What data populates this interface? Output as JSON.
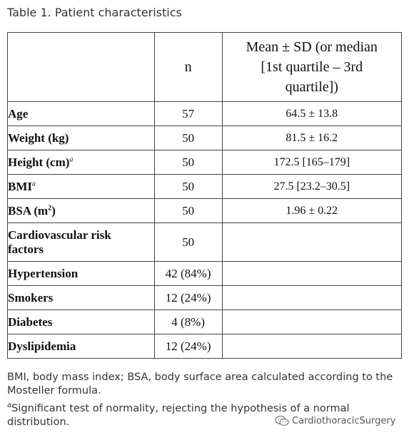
{
  "title": "Table 1. Patient characteristics",
  "headers": {
    "col1": "",
    "n": "n",
    "stat_line1": "Mean ± SD (or median",
    "stat_line2": "[1st quartile – 3rd",
    "stat_line3": "quartile])"
  },
  "rows": [
    {
      "label": "Age",
      "sup": "",
      "n": "57",
      "value": "64.5 ± 13.8"
    },
    {
      "label": "Weight (kg)",
      "sup": "",
      "n": "50",
      "value": "81.5 ± 16.2"
    },
    {
      "label": "Height (cm)",
      "sup": "a",
      "n": "50",
      "value": "172.5 [165–179]"
    },
    {
      "label": "BMI",
      "sup": "a",
      "n": "50",
      "value": "27.5 [23.2–30.5]"
    },
    {
      "label_pre": "BSA (m",
      "label_sup": "2",
      "label_post": ")",
      "n": "50",
      "value": "1.96 ± 0.22"
    },
    {
      "label_line1": "Cardiovascular risk",
      "label_line2": "factors",
      "n": "50",
      "value": ""
    },
    {
      "label": "Hypertension",
      "n": "42 (84%)",
      "value": ""
    },
    {
      "label": "Smokers",
      "n": "12 (24%)",
      "value": ""
    },
    {
      "label": "Diabetes",
      "n": "4 (8%)",
      "value": ""
    },
    {
      "label": "Dyslipidemia",
      "n": "12 (24%)",
      "value": ""
    }
  ],
  "footnotes": {
    "abbrev": "BMI, body mass index; BSA, body surface area calculated according to the Mosteller formula.",
    "a_marker": "a",
    "a_text": "Significant test of normality, rejecting the hypothesis of a normal distribution."
  },
  "watermark": {
    "text": "CardiothoracicSurgery",
    "icon": "wechat-icon"
  }
}
